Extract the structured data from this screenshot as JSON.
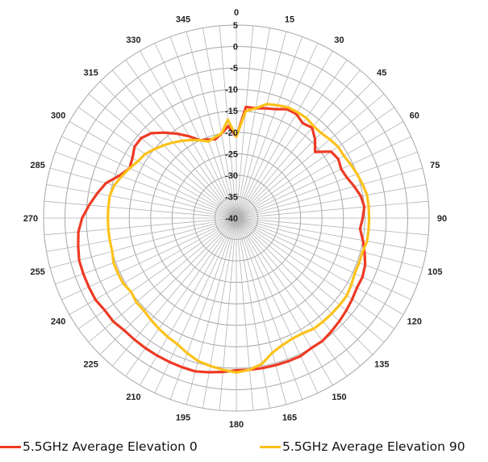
{
  "chart_data": {
    "type": "polar",
    "radial_axis": {
      "min": -40,
      "max": 5,
      "step": 5,
      "tick_labels": [
        "-40",
        "-35",
        "-30",
        "-25",
        "-20",
        "-15",
        "-10",
        "-5",
        "0",
        "5"
      ]
    },
    "angular_axis": {
      "step": 15,
      "direction": "clockwise",
      "zero_at": "top",
      "tick_labels": [
        "0",
        "15",
        "30",
        "45",
        "60",
        "75",
        "90",
        "105",
        "120",
        "135",
        "150",
        "165",
        "180",
        "195",
        "210",
        "225",
        "240",
        "255",
        "270",
        "285",
        "300",
        "315",
        "330",
        "345"
      ]
    },
    "grid": true,
    "legend_position": "bottom",
    "series": [
      {
        "name": "5.5GHz Average Elevation 0",
        "color": "#ee3a24",
        "angles": [
          0,
          5,
          10,
          15,
          20,
          25,
          30,
          35,
          40,
          45,
          50,
          55,
          60,
          65,
          70,
          75,
          80,
          85,
          90,
          95,
          100,
          105,
          110,
          115,
          120,
          125,
          130,
          135,
          140,
          145,
          150,
          155,
          160,
          165,
          170,
          175,
          180,
          185,
          190,
          195,
          200,
          205,
          210,
          215,
          220,
          225,
          230,
          235,
          240,
          245,
          250,
          255,
          260,
          265,
          270,
          275,
          280,
          285,
          290,
          295,
          300,
          305,
          310,
          315,
          320,
          325,
          330,
          335,
          340,
          345,
          350,
          355
        ],
        "values": [
          -21,
          -14,
          -14,
          -13.5,
          -13,
          -12,
          -12,
          -13,
          -12.5,
          -14,
          -16,
          -13,
          -12.5,
          -13,
          -12.5,
          -11.5,
          -10.5,
          -10,
          -10.5,
          -11,
          -10,
          -9,
          -8,
          -7.5,
          -7.5,
          -7,
          -6.5,
          -6,
          -5.5,
          -5,
          -5,
          -4.5,
          -4.5,
          -4.5,
          -4.5,
          -4.5,
          -4.5,
          -4,
          -3.5,
          -3,
          -3,
          -3,
          -3,
          -3,
          -3,
          -3,
          -2.5,
          -2.5,
          -2,
          -2,
          -2,
          -2,
          -2.5,
          -3,
          -4,
          -5.5,
          -7,
          -8.5,
          -11,
          -12.5,
          -12,
          -11,
          -11,
          -12,
          -14,
          -16,
          -18,
          -20,
          -20.5,
          -21,
          -20,
          -18.5
        ]
      },
      {
        "name": "5.5GHz Average Elevation 90",
        "color": "#fcc21b",
        "angles": [
          0,
          5,
          10,
          15,
          20,
          25,
          30,
          35,
          40,
          45,
          50,
          55,
          60,
          65,
          70,
          75,
          80,
          85,
          90,
          95,
          100,
          105,
          110,
          115,
          120,
          125,
          130,
          135,
          140,
          145,
          150,
          155,
          160,
          165,
          170,
          175,
          180,
          185,
          190,
          195,
          200,
          205,
          210,
          215,
          220,
          225,
          230,
          235,
          240,
          245,
          250,
          255,
          260,
          265,
          270,
          275,
          280,
          285,
          290,
          295,
          300,
          305,
          310,
          315,
          320,
          325,
          330,
          335,
          340,
          345,
          350,
          355
        ],
        "values": [
          -21,
          -15,
          -14,
          -12.5,
          -12,
          -11.5,
          -11.5,
          -11.5,
          -12,
          -12,
          -11.5,
          -11,
          -11,
          -10.5,
          -10,
          -9.5,
          -9,
          -9,
          -9,
          -9,
          -9,
          -9.5,
          -9.5,
          -9.5,
          -9,
          -8.5,
          -8.5,
          -8.5,
          -8.5,
          -8.5,
          -9,
          -9,
          -8.5,
          -7.5,
          -5.5,
          -4.5,
          -4,
          -4.5,
          -5,
          -5.5,
          -6.5,
          -7.5,
          -8,
          -8.5,
          -9,
          -9.5,
          -9.5,
          -10,
          -9.5,
          -9.5,
          -9.5,
          -10,
          -10,
          -10,
          -10,
          -10,
          -10,
          -10.5,
          -11.5,
          -12.5,
          -13.5,
          -14,
          -15,
          -16,
          -17,
          -18,
          -19,
          -20,
          -21,
          -20.5,
          -20,
          -17
        ]
      }
    ]
  }
}
